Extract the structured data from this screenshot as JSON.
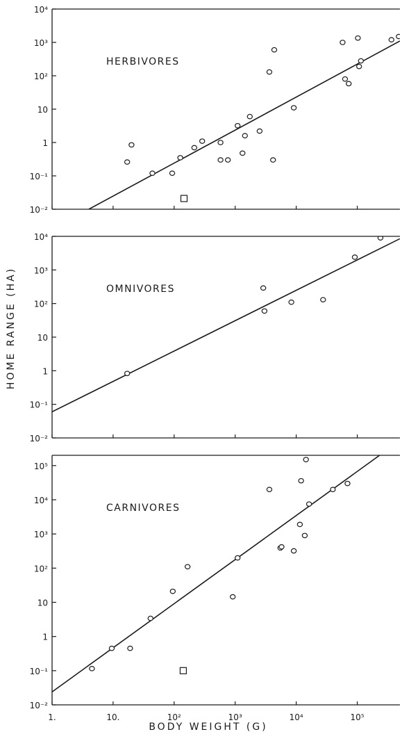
{
  "figure": {
    "ylabel": "HOME  RANGE  (HA)",
    "xlabel": "BODY  WEIGHT  (G)",
    "x_tick_labels": [
      "1.",
      "10.",
      "10²",
      "10³",
      "10⁴",
      "10⁵"
    ]
  },
  "chart_data": [
    {
      "type": "scatter",
      "title": "HERBIVORES",
      "x_scale": "log",
      "y_scale": "log",
      "xlim": [
        1,
        500000
      ],
      "ylim": [
        0.01,
        10000
      ],
      "y_tick_labels": [
        "10⁻²",
        "10⁻¹",
        "1",
        "10",
        "10²",
        "10³",
        "10⁴"
      ],
      "y_tick_values": [
        0.01,
        0.1,
        1,
        10,
        100,
        1000,
        10000
      ],
      "points": [
        [
          17,
          0.26
        ],
        [
          20,
          0.85
        ],
        [
          44,
          0.12
        ],
        [
          93,
          0.12
        ],
        [
          126,
          0.35
        ],
        [
          214,
          0.7
        ],
        [
          288,
          1.1
        ],
        [
          575,
          1.0
        ],
        [
          575,
          0.3
        ],
        [
          759,
          0.3
        ],
        [
          1096,
          3.2
        ],
        [
          1318,
          0.48
        ],
        [
          1445,
          1.6
        ],
        [
          1738,
          6.0
        ],
        [
          2512,
          2.2
        ],
        [
          3631,
          130
        ],
        [
          4169,
          0.3
        ],
        [
          4365,
          600
        ],
        [
          9120,
          11
        ],
        [
          57544,
          1000
        ],
        [
          63096,
          80
        ],
        [
          72444,
          58
        ],
        [
          102329,
          1350
        ],
        [
          107152,
          190
        ],
        [
          114815,
          280
        ],
        [
          363078,
          1200
        ],
        [
          478630,
          1500
        ]
      ],
      "special_points": [
        [
          145,
          0.021
        ]
      ],
      "fit_line": [
        [
          4,
          0.01
        ],
        [
          500000,
          1100
        ]
      ]
    },
    {
      "type": "scatter",
      "title": "OMNIVORES",
      "x_scale": "log",
      "y_scale": "log",
      "xlim": [
        1,
        500000
      ],
      "ylim": [
        0.01,
        10000
      ],
      "y_tick_labels": [
        "10⁻²",
        "10⁻¹",
        "1",
        "10",
        "10²",
        "10³",
        "10⁴"
      ],
      "y_tick_values": [
        0.01,
        0.1,
        1,
        10,
        100,
        1000,
        10000
      ],
      "points": [
        [
          17,
          0.83
        ],
        [
          2884,
          290
        ],
        [
          3020,
          60
        ],
        [
          8318,
          110
        ],
        [
          27542,
          130
        ],
        [
          91201,
          2400
        ],
        [
          239883,
          9000
        ]
      ],
      "special_points": [],
      "fit_line": [
        [
          1,
          0.06
        ],
        [
          500000,
          8500
        ]
      ]
    },
    {
      "type": "scatter",
      "title": "CARNIVORES",
      "x_scale": "log",
      "y_scale": "log",
      "xlim": [
        1,
        500000
      ],
      "ylim": [
        0.01,
        200000
      ],
      "y_tick_labels": [
        "10⁻²",
        "10⁻¹",
        "1",
        "10",
        "10²",
        "10³",
        "10⁴",
        "10⁵"
      ],
      "y_tick_values": [
        0.01,
        0.1,
        1,
        10,
        100,
        1000,
        10000,
        100000
      ],
      "points": [
        [
          4.5,
          0.115
        ],
        [
          9.5,
          0.45
        ],
        [
          19,
          0.45
        ],
        [
          41,
          3.4
        ],
        [
          95,
          21
        ],
        [
          166,
          110
        ],
        [
          912,
          14.5
        ],
        [
          1096,
          200
        ],
        [
          3631,
          20000
        ],
        [
          5495,
          390
        ],
        [
          5754,
          420
        ],
        [
          9120,
          320
        ],
        [
          11482,
          1900
        ],
        [
          12023,
          36000
        ],
        [
          13804,
          900
        ],
        [
          14454,
          150000
        ],
        [
          16218,
          7500
        ],
        [
          39811,
          20000
        ],
        [
          69183,
          30000
        ]
      ],
      "special_points": [
        [
          141,
          0.1
        ]
      ],
      "fit_line": [
        [
          1,
          0.024
        ],
        [
          250000,
          220000
        ]
      ]
    }
  ]
}
